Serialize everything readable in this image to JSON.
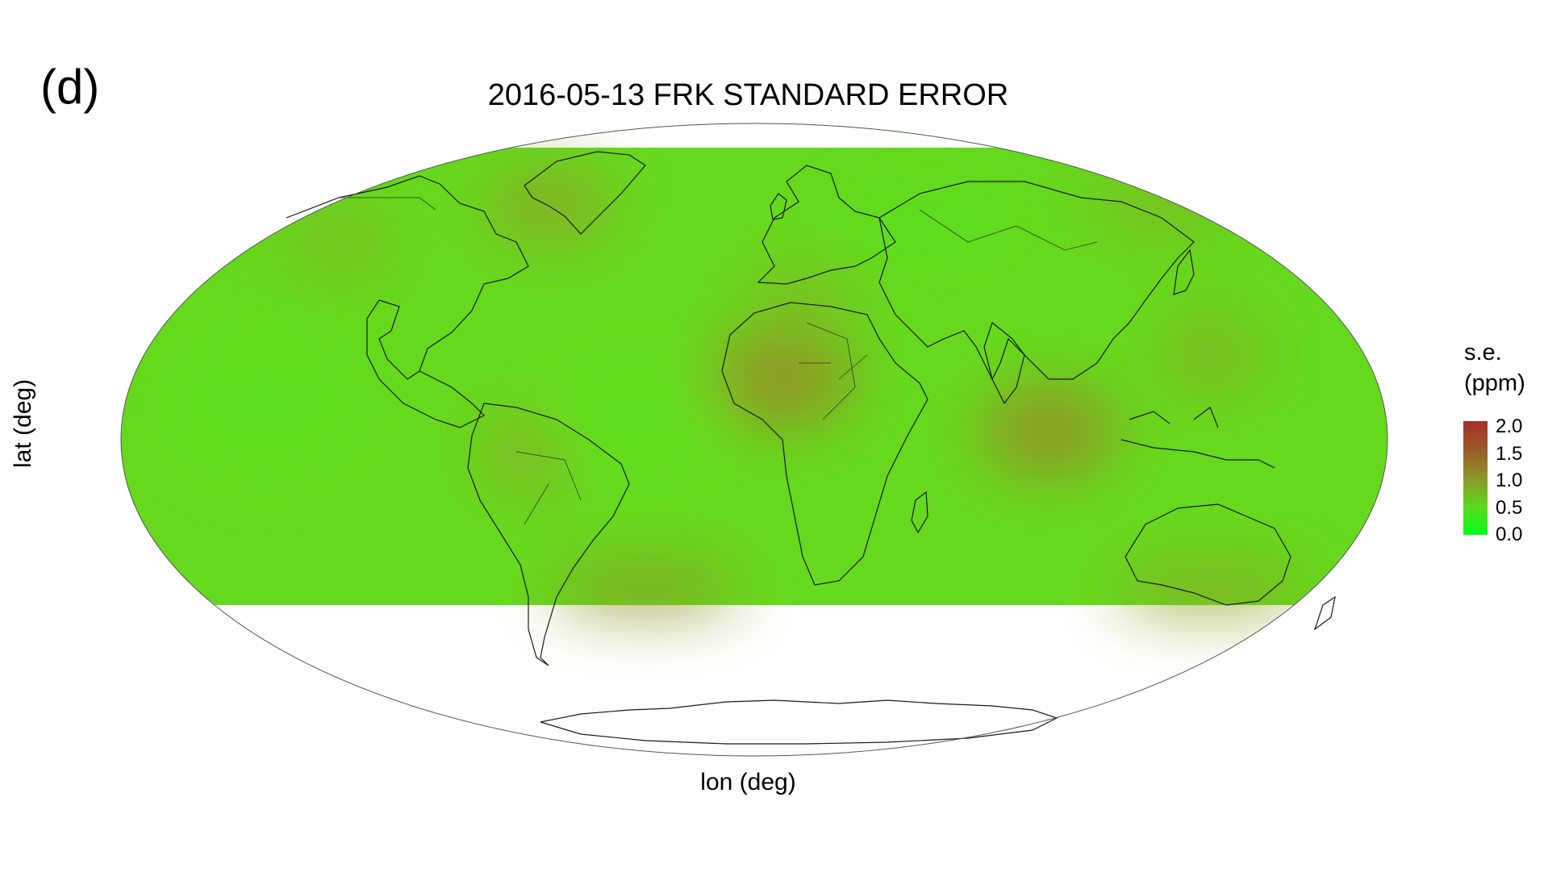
{
  "panel_label": "(d)",
  "map": {
    "title": "2016-05-13  FRK STANDARD ERROR",
    "xlabel": "lon (deg)",
    "ylabel": "lat (deg)",
    "projection": "mollweide",
    "data_coverage_lat": [
      -60,
      84
    ],
    "colors": {
      "low": "#00ff1a",
      "mid": "#66dd1e",
      "high": "#a62f2a",
      "coastline": "#1a1a1a",
      "outline": "#555555"
    }
  },
  "legend": {
    "title_line1": "s.e.",
    "title_line2": "(ppm)",
    "ticks": [
      "2.0",
      "1.5",
      "1.0",
      "0.5",
      "0.0"
    ],
    "range": [
      0.0,
      2.0
    ]
  }
}
